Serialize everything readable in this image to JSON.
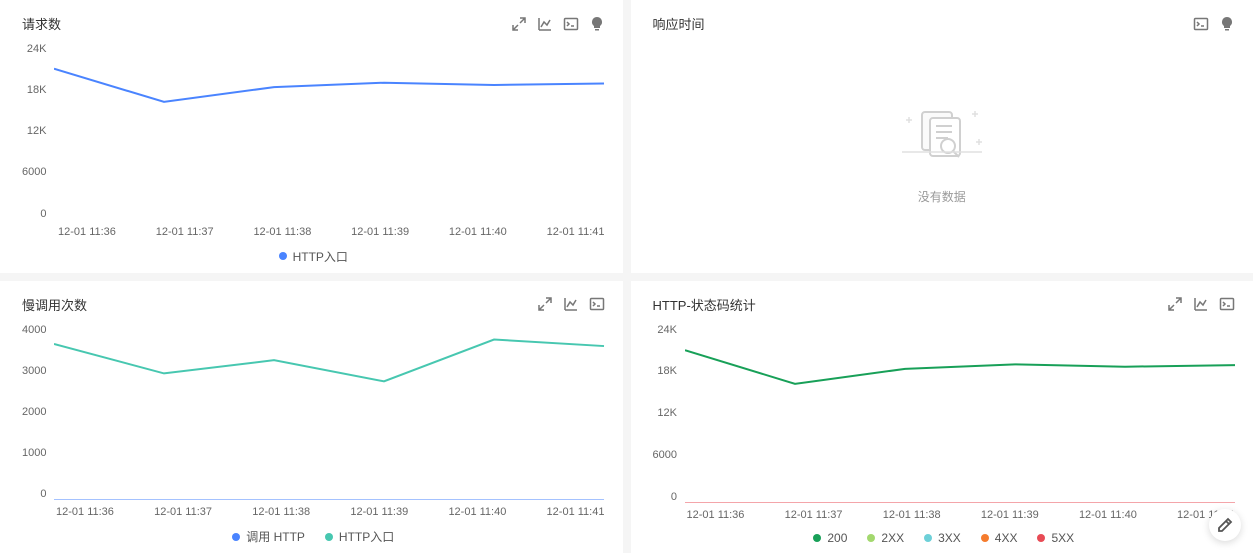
{
  "panels": {
    "requests": {
      "title": "请求数",
      "type": "line",
      "icons": [
        "expand",
        "chart",
        "console",
        "bulb"
      ],
      "y_ticks": [
        "24K",
        "18K",
        "12K",
        "6000",
        "0"
      ],
      "y_range": [
        0,
        24000
      ],
      "x_labels": [
        "12-01 11:36",
        "12-01 11:37",
        "12-01 11:38",
        "12-01 11:39",
        "12-01 11:40",
        "12-01 11:41"
      ],
      "series": [
        {
          "name": "HTTP入口",
          "color": "#4a84ff",
          "values": [
            20500,
            16000,
            18000,
            18600,
            18300,
            18500
          ]
        }
      ]
    },
    "response_time": {
      "title": "响应时间",
      "icons": [
        "console",
        "bulb"
      ],
      "empty_text": "没有数据"
    },
    "slow_calls": {
      "title": "慢调用次数",
      "type": "line",
      "icons": [
        "expand",
        "chart",
        "console"
      ],
      "y_ticks": [
        "4000",
        "3000",
        "2000",
        "1000",
        "0"
      ],
      "y_range": [
        0,
        4000
      ],
      "x_labels": [
        "12-01 11:36",
        "12-01 11:37",
        "12-01 11:38",
        "12-01 11:39",
        "12-01 11:40",
        "12-01 11:41"
      ],
      "series": [
        {
          "name": "调用 HTTP",
          "color": "#4a84ff",
          "values": [
            0,
            0,
            0,
            0,
            0,
            0
          ]
        },
        {
          "name": "HTTP入口",
          "color": "#47c7b0",
          "values": [
            3550,
            2880,
            3180,
            2700,
            3650,
            3500
          ]
        }
      ]
    },
    "status_codes": {
      "title": "HTTP-状态码统计",
      "type": "line",
      "icons": [
        "expand",
        "chart",
        "console"
      ],
      "y_ticks": [
        "24K",
        "18K",
        "12K",
        "6000",
        "0"
      ],
      "y_range": [
        0,
        24000
      ],
      "x_labels": [
        "12-01 11:36",
        "12-01 11:37",
        "12-01 11:38",
        "12-01 11:39",
        "12-01 11:40",
        "12-01 11:41"
      ],
      "series": [
        {
          "name": "200",
          "color": "#18a058",
          "values": [
            20500,
            16000,
            18000,
            18600,
            18300,
            18500
          ]
        },
        {
          "name": "2XX",
          "color": "#a3d86e",
          "values": [
            0,
            0,
            0,
            0,
            0,
            0
          ]
        },
        {
          "name": "3XX",
          "color": "#6dd0d8",
          "values": [
            0,
            0,
            0,
            0,
            0,
            0
          ]
        },
        {
          "name": "4XX",
          "color": "#f57c2e",
          "values": [
            0,
            0,
            0,
            0,
            0,
            0
          ]
        },
        {
          "name": "5XX",
          "color": "#e84b55",
          "values": [
            0,
            0,
            0,
            0,
            0,
            0
          ]
        }
      ]
    }
  },
  "style": {
    "background": "#f5f5f5",
    "panel_bg": "#ffffff",
    "text_color": "#333333",
    "axis_color": "#666666",
    "grid_color": "#e8e8e8",
    "line_width": 2
  }
}
